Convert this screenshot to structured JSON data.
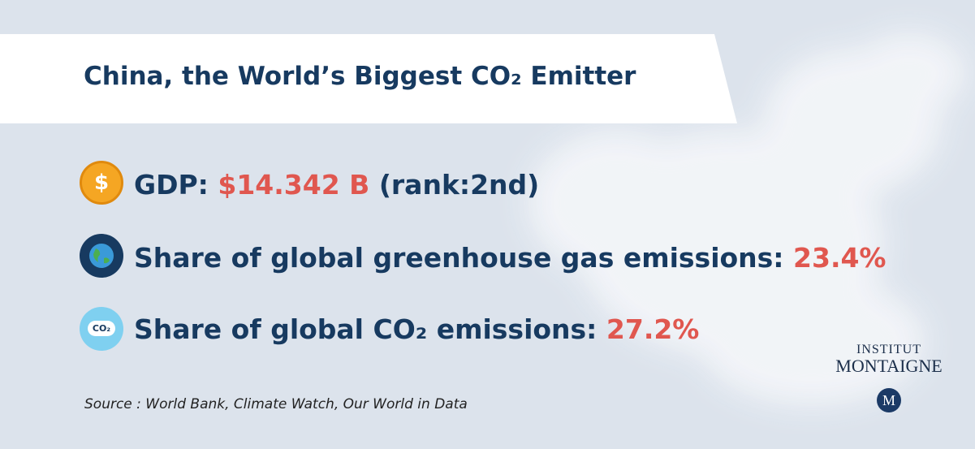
{
  "header": {
    "title": "China, the World’s Biggest CO₂ Emitter"
  },
  "items": [
    {
      "icon": "$",
      "label": "GDP:",
      "value": "$14.342 B",
      "suffix": "(rank:2nd)"
    },
    {
      "label": "Share of global greenhouse gas emissions:",
      "value": "23.4%"
    },
    {
      "icon": "CO₂",
      "label": "Share of global CO₂ emissions:",
      "value": "27.2%"
    }
  ],
  "source": "Source : World Bank, Climate Watch, Our World in Data",
  "logo": {
    "line1": "INSTITUT",
    "line2": "MONTAIGNE",
    "monogram": "M"
  }
}
